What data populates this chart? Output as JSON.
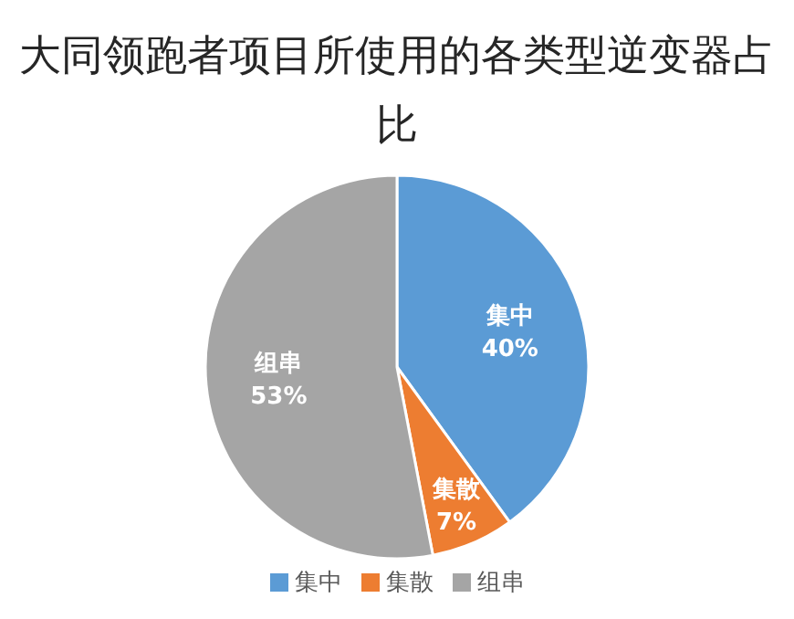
{
  "chart_data": {
    "type": "pie",
    "title": "大同领跑者项目所使用的各类型逆变器占比",
    "categories": [
      "集中",
      "集散",
      "组串"
    ],
    "values": [
      40,
      7,
      53
    ],
    "colors": [
      "#5b9bd5",
      "#ed7d31",
      "#a5a5a5"
    ],
    "value_labels": [
      "40%",
      "7%",
      "53%"
    ],
    "legend": "bottom"
  }
}
